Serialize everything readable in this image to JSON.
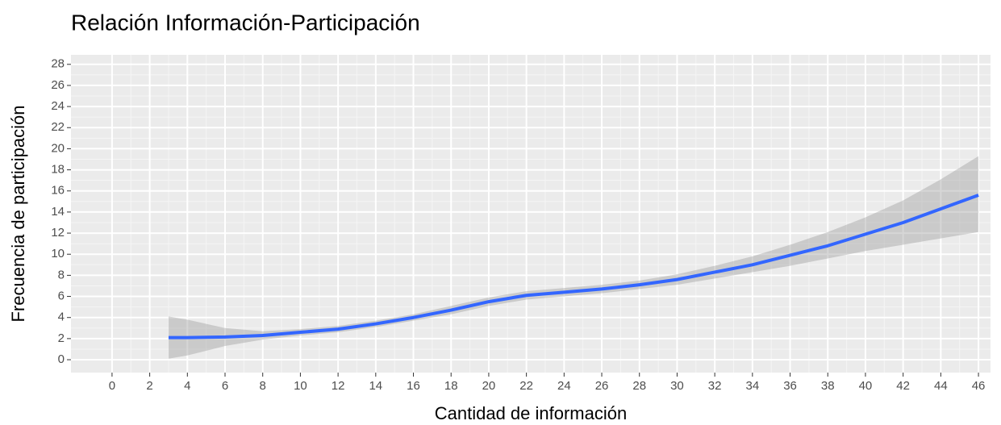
{
  "chart_data": {
    "type": "line",
    "title": "Relación Información-Participación",
    "x_label": "Cantidad de información",
    "y_label": "Frecuencia de participación",
    "x": [
      3,
      4,
      6,
      8,
      10,
      12,
      14,
      16,
      18,
      20,
      22,
      24,
      26,
      28,
      30,
      32,
      34,
      36,
      38,
      40,
      42,
      44,
      46
    ],
    "series": [
      {
        "color": "#3366ff",
        "values": [
          2.1,
          2.1,
          2.15,
          2.3,
          2.6,
          2.9,
          3.4,
          4.0,
          4.7,
          5.5,
          6.1,
          6.4,
          6.7,
          7.1,
          7.6,
          8.3,
          9.0,
          9.9,
          10.8,
          11.9,
          13.0,
          14.3,
          15.6
        ]
      }
    ],
    "band": {
      "color": "#999999",
      "lower": [
        0.1,
        0.4,
        1.3,
        1.9,
        2.3,
        2.6,
        3.1,
        3.7,
        4.3,
        5.1,
        5.7,
        6.0,
        6.3,
        6.7,
        7.1,
        7.7,
        8.3,
        8.9,
        9.6,
        10.3,
        10.9,
        11.5,
        12.1
      ],
      "upper": [
        4.1,
        3.8,
        3.0,
        2.7,
        2.9,
        3.2,
        3.7,
        4.3,
        5.1,
        5.9,
        6.5,
        6.8,
        7.1,
        7.5,
        8.1,
        8.9,
        9.8,
        10.9,
        12.1,
        13.5,
        15.1,
        17.1,
        19.3
      ]
    },
    "xlim": [
      -2.18,
      46.64
    ],
    "ylim": [
      -1.22,
      28.9
    ],
    "xticks": [
      0,
      2,
      4,
      6,
      8,
      10,
      12,
      14,
      16,
      18,
      20,
      22,
      24,
      26,
      28,
      30,
      32,
      34,
      36,
      38,
      40,
      42,
      44,
      46
    ],
    "yticks": [
      0,
      2,
      4,
      6,
      8,
      10,
      12,
      14,
      16,
      18,
      20,
      22,
      24,
      26,
      28
    ],
    "grid": true
  }
}
